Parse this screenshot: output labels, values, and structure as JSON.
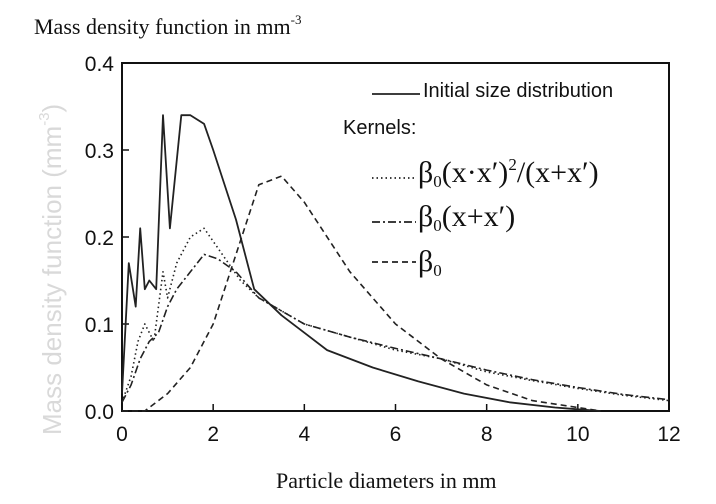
{
  "chart_data": {
    "type": "line",
    "title": "",
    "ylabel_main": "Mass density function in mm",
    "ylabel_main_exp": "-3",
    "ylabel_side": "Mass density function (mm",
    "ylabel_side_exp": "-3",
    "ylabel_side_end": ")",
    "xlabel": "Particle diameters in mm",
    "xlim": [
      0,
      12
    ],
    "ylim": [
      0,
      0.4
    ],
    "x_ticks": [
      0,
      2,
      4,
      6,
      8,
      10,
      12
    ],
    "x_tick_labels": [
      "0",
      "2",
      "4",
      "6",
      "8",
      "10",
      "12"
    ],
    "y_ticks": [
      0.0,
      0.1,
      0.2,
      0.3,
      0.4
    ],
    "y_tick_labels": [
      "0.0",
      "0.1",
      "0.2",
      "0.3",
      "0.4"
    ],
    "legend_title": "Kernels:",
    "series": [
      {
        "name": "Initial size distribution",
        "style": "solid",
        "x": [
          0.0,
          0.15,
          0.3,
          0.4,
          0.5,
          0.6,
          0.75,
          0.9,
          1.05,
          1.3,
          1.5,
          1.8,
          2.0,
          2.5,
          2.9,
          3.5,
          4.0,
          4.5,
          5.5,
          6.5,
          7.5,
          8.5,
          9.5,
          10.0,
          10.5
        ],
        "values": [
          0.02,
          0.17,
          0.12,
          0.21,
          0.14,
          0.15,
          0.14,
          0.34,
          0.21,
          0.34,
          0.34,
          0.33,
          0.3,
          0.22,
          0.14,
          0.11,
          0.09,
          0.07,
          0.05,
          0.034,
          0.02,
          0.01,
          0.004,
          0.002,
          0.0
        ]
      },
      {
        "name": "β0(x·x′)2/(x+x′)",
        "style": "dotted",
        "x": [
          0.0,
          0.2,
          0.35,
          0.5,
          0.7,
          0.9,
          1.0,
          1.2,
          1.5,
          1.8,
          2.2,
          2.6,
          3.0,
          3.5,
          4.0,
          5.0,
          6.0,
          7.0,
          8.0,
          9.0,
          10.0,
          11.0,
          12.0
        ],
        "values": [
          0.01,
          0.04,
          0.08,
          0.1,
          0.08,
          0.16,
          0.13,
          0.17,
          0.2,
          0.21,
          0.18,
          0.15,
          0.13,
          0.115,
          0.1,
          0.085,
          0.07,
          0.06,
          0.045,
          0.035,
          0.026,
          0.018,
          0.012
        ]
      },
      {
        "name": "β0(x+x′)",
        "style": "dashdot",
        "x": [
          0.0,
          0.2,
          0.4,
          0.6,
          0.8,
          1.0,
          1.2,
          1.5,
          1.8,
          2.1,
          2.5,
          3.0,
          3.5,
          4.0,
          5.0,
          6.0,
          7.0,
          8.0,
          9.0,
          10.0,
          11.0,
          12.0
        ],
        "values": [
          0.01,
          0.03,
          0.06,
          0.08,
          0.09,
          0.12,
          0.14,
          0.16,
          0.18,
          0.175,
          0.16,
          0.13,
          0.115,
          0.1,
          0.085,
          0.072,
          0.06,
          0.047,
          0.036,
          0.027,
          0.019,
          0.013
        ]
      },
      {
        "name": "β0",
        "style": "dashed",
        "x": [
          0.0,
          0.5,
          1.0,
          1.5,
          2.0,
          2.5,
          3.0,
          3.5,
          4.0,
          4.5,
          5.0,
          6.0,
          7.0,
          8.0,
          9.0,
          10.0,
          10.5
        ],
        "values": [
          0.0,
          0.0,
          0.02,
          0.05,
          0.1,
          0.18,
          0.26,
          0.27,
          0.24,
          0.2,
          0.16,
          0.1,
          0.06,
          0.03,
          0.012,
          0.004,
          0.0
        ]
      }
    ]
  },
  "legend": {
    "initial_label": "Initial size distribution",
    "kernels_title": "Kernels:",
    "kernel1_beta": "β",
    "kernel1_sub": "0",
    "kernel1_mid": "(x·x′)",
    "kernel1_sup": "2",
    "kernel1_end": "/(x+x′)",
    "kernel2_beta": "β",
    "kernel2_sub": "0",
    "kernel2_end": "(x+x′)",
    "kernel3_beta": "β",
    "kernel3_sub": "0"
  }
}
